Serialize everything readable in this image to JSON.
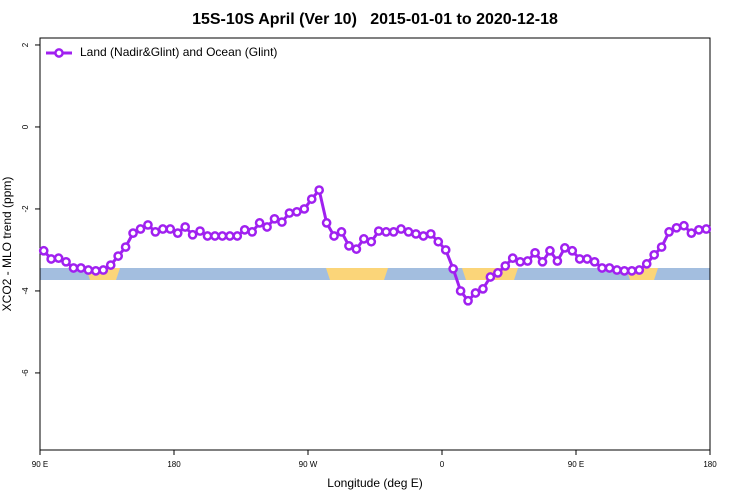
{
  "chart_data": {
    "type": "line",
    "title": "15S-10S April (Ver 10)   2015-01-01 to 2020-12-18",
    "xlabel": "Longitude (deg E)",
    "ylabel": "XCO2 - MLO trend (ppm)",
    "xlim": [
      90,
      540
    ],
    "xticks": [
      {
        "value": 90,
        "label": "90 E"
      },
      {
        "value": 180,
        "label": "180"
      },
      {
        "value": 270,
        "label": "90 W"
      },
      {
        "value": 360,
        "label": "0"
      },
      {
        "value": 450,
        "label": "90 E"
      },
      {
        "value": 540,
        "label": "180"
      }
    ],
    "ylim": [
      -7.88,
      2.17
    ],
    "yticks": [
      2,
      0,
      -2,
      -4,
      -6
    ],
    "legend": "top-left",
    "x": [
      92.5,
      97.5,
      102.5,
      107.5,
      112.5,
      117.5,
      122.5,
      127.5,
      132.5,
      137.5,
      142.5,
      147.5,
      152.5,
      157.5,
      162.5,
      167.5,
      172.5,
      177.5,
      182.5,
      187.5,
      192.5,
      197.5,
      202.5,
      207.5,
      212.5,
      217.5,
      222.5,
      227.5,
      232.5,
      237.5,
      242.5,
      247.5,
      252.5,
      257.5,
      262.5,
      267.5,
      272.5,
      277.5,
      282.5,
      287.5,
      292.5,
      297.5,
      302.5,
      307.5,
      312.5,
      317.5,
      322.5,
      327.5,
      332.5,
      337.5,
      342.5,
      347.5,
      352.5,
      357.5,
      362.5,
      367.5,
      372.5,
      377.5,
      382.5,
      387.5,
      392.5,
      397.5,
      402.5,
      407.5,
      412.5,
      417.5,
      422.5,
      427.5,
      432.5,
      437.5,
      442.5,
      447.5,
      452.5,
      457.5,
      462.5,
      467.5,
      472.5,
      477.5,
      482.5,
      487.5,
      492.5,
      497.5,
      502.5,
      507.5,
      512.5,
      517.5,
      522.5,
      527.5,
      532.5,
      537.5
    ],
    "series": [
      {
        "name": "Land (Nadir&Glint) and Ocean (Glint)",
        "color": "#a020f0",
        "values": [
          -3.02,
          -3.22,
          -3.2,
          -3.29,
          -3.44,
          -3.44,
          -3.49,
          -3.51,
          -3.49,
          -3.37,
          -3.15,
          -2.93,
          -2.59,
          -2.49,
          -2.39,
          -2.56,
          -2.49,
          -2.49,
          -2.59,
          -2.44,
          -2.63,
          -2.54,
          -2.66,
          -2.66,
          -2.66,
          -2.66,
          -2.66,
          -2.51,
          -2.56,
          -2.34,
          -2.44,
          -2.24,
          -2.32,
          -2.1,
          -2.07,
          -2.0,
          -1.76,
          -1.54,
          -2.34,
          -2.66,
          -2.56,
          -2.9,
          -2.98,
          -2.73,
          -2.8,
          -2.54,
          -2.56,
          -2.56,
          -2.49,
          -2.56,
          -2.61,
          -2.66,
          -2.61,
          -2.8,
          -3.0,
          -3.46,
          -4.0,
          -4.24,
          -4.05,
          -3.95,
          -3.66,
          -3.56,
          -3.39,
          -3.2,
          -3.29,
          -3.27,
          -3.07,
          -3.29,
          -3.02,
          -3.27,
          -2.95,
          -3.02,
          -3.22,
          -3.22,
          -3.29,
          -3.44,
          -3.44,
          -3.49,
          -3.51,
          -3.51,
          -3.49,
          -3.34,
          -3.12,
          -2.93,
          -2.56,
          -2.46,
          -2.41,
          -2.59,
          -2.51,
          -2.49
        ]
      }
    ]
  }
}
